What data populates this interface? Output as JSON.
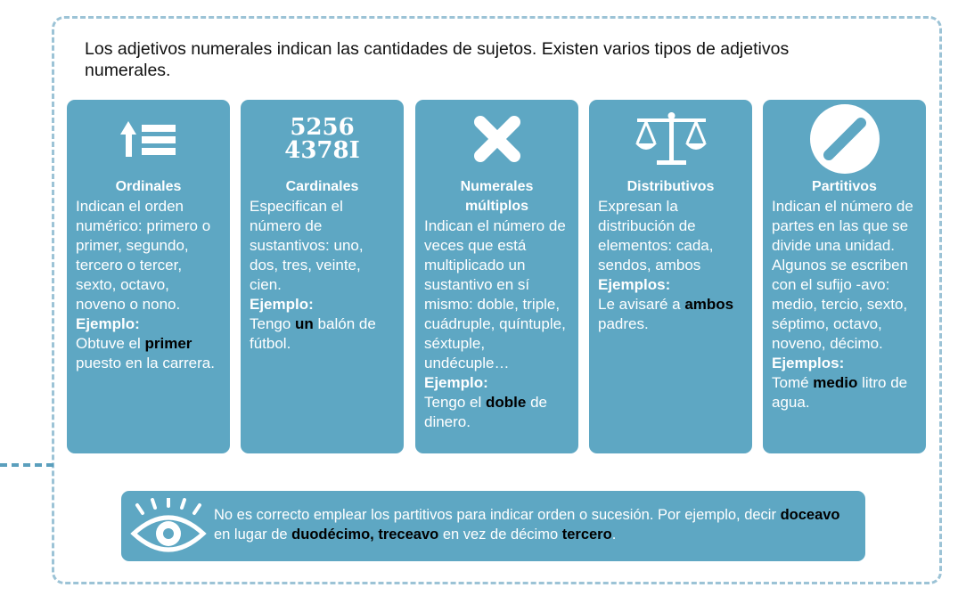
{
  "intro": "Los adjetivos numerales indican las cantidades de sujetos. Existen varios tipos de adjetivos numerales.",
  "colors": {
    "card": "#5ea7c3",
    "frame": "#9cc3d6",
    "highlight": "#000000"
  },
  "cards": [
    {
      "icon": "ordinal-list-icon",
      "title": "Ordinales",
      "body": "Indican el orden numérico: primero o primer, segundo, tercero o tercer, sexto, octavo, noveno o nono.",
      "example_label": "Ejemplo:",
      "example_pre": "Obtuve el ",
      "example_hl": "primer",
      "example_post": " puesto en la carrera."
    },
    {
      "icon": "numbers-icon",
      "icon_line1": "5256",
      "icon_line2": "4378I",
      "title": "Cardinales",
      "body": "Especifican el número de sustantivos: uno, dos, tres, veinte, cien.",
      "example_label": "Ejemplo:",
      "example_pre": "Tengo ",
      "example_hl": "un",
      "example_post": " balón de fútbol."
    },
    {
      "icon": "multiply-icon",
      "title": "Numerales múltiplos",
      "body": "Indican el número de veces que está multiplicado un sustantivo en sí mismo: doble, triple, cuádruple, quíntuple, séxtuple, undécuple…",
      "example_label": "Ejemplo:",
      "example_pre": "Tengo el ",
      "example_hl": "doble",
      "example_post": " de dinero."
    },
    {
      "icon": "balance-scale-icon",
      "title": "Distributivos",
      "body": "Expresan la distribución de elementos: cada, sendos, ambos",
      "example_label": "Ejemplos:",
      "example_pre": "Le avisaré a ",
      "example_hl": "ambos",
      "example_post": " padres."
    },
    {
      "icon": "slash-circle-icon",
      "title": "Partitivos",
      "body": "Indican el número de partes en las que se divide una unidad. Algunos se escriben con el sufijo -avo: medio, tercio,  sexto, séptimo, octavo, noveno, décimo.",
      "example_label": "Ejemplos:",
      "example_pre": "Tomé ",
      "example_hl": "medio",
      "example_post": " litro de agua."
    }
  ],
  "note": {
    "icon": "eye-icon",
    "t1": "No es correcto emplear los partitivos para indicar orden o sucesión. Por ejemplo, decir ",
    "h1": "doceavo",
    "t2": " en lugar de ",
    "h2": "duodécimo,",
    "t3": " ",
    "h3": "treceavo",
    "t4": " en vez de décimo ",
    "h4": "tercero",
    "t5": "."
  }
}
